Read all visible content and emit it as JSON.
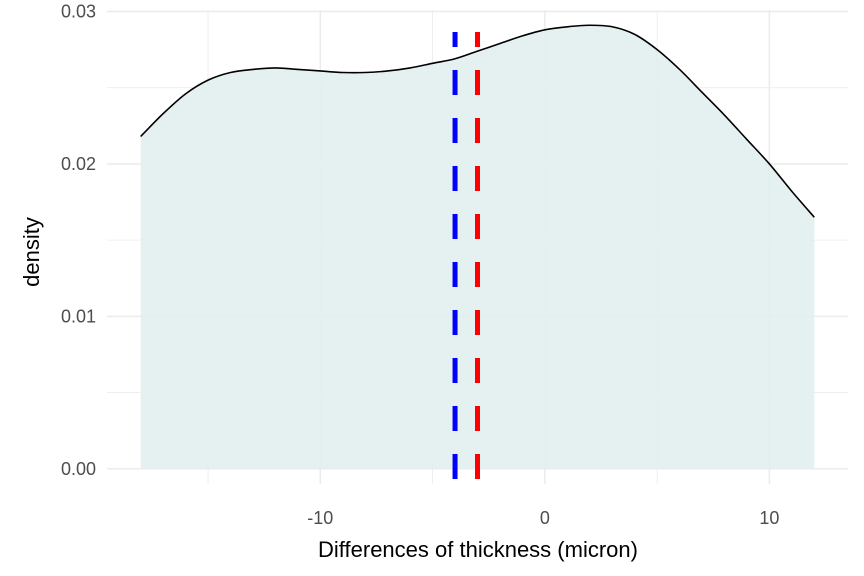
{
  "chart_data": {
    "type": "area",
    "title": "",
    "xlabel": "Differences of thickness (micron)",
    "ylabel": "density",
    "xlim": [
      -19.5,
      13.5
    ],
    "ylim": [
      -0.001,
      0.0301
    ],
    "x_ticks": [
      -10,
      0,
      10
    ],
    "x_tick_labels": [
      "-10",
      "0",
      "10"
    ],
    "x_minor_ticks": [
      -15,
      -5,
      5
    ],
    "y_ticks": [
      0,
      0.01,
      0.02,
      0.03
    ],
    "y_tick_labels": [
      "0.00",
      "0.01",
      "0.02",
      "0.03"
    ],
    "y_minor_ticks": [
      0.005,
      0.015,
      0.025
    ],
    "grid": true,
    "density_curve": {
      "x": [
        -18,
        -17,
        -16,
        -15,
        -14,
        -13,
        -12,
        -11,
        -10,
        -9,
        -8,
        -7,
        -6,
        -5,
        -4,
        -3,
        -2,
        -1,
        0,
        1,
        2,
        3,
        4,
        5,
        6,
        7,
        8,
        9,
        10,
        11,
        12
      ],
      "y": [
        0.0218,
        0.0233,
        0.0246,
        0.0255,
        0.026,
        0.0262,
        0.0263,
        0.0262,
        0.0261,
        0.026,
        0.026,
        0.0261,
        0.0263,
        0.0266,
        0.0269,
        0.0274,
        0.0279,
        0.0284,
        0.0288,
        0.029,
        0.0291,
        0.029,
        0.0285,
        0.0275,
        0.0262,
        0.0247,
        0.0232,
        0.0216,
        0.02,
        0.0182,
        0.0165
      ]
    },
    "vlines": [
      {
        "x": -4,
        "color": "#0000ff",
        "style": "dashed"
      },
      {
        "x": -3,
        "color": "#ff0000",
        "style": "dashed"
      }
    ],
    "fill_color": "#e2efee",
    "line_color": "#000000",
    "grid_color": "#ebebeb"
  }
}
